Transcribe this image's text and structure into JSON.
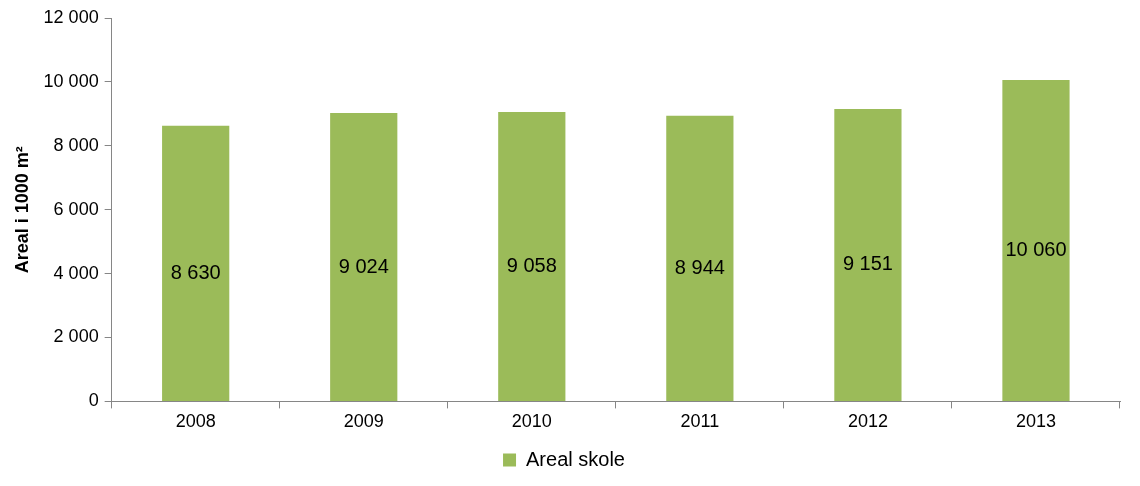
{
  "chart_data": {
    "type": "bar",
    "ylabel": "Areal i 1000 m²",
    "categories": [
      "2008",
      "2009",
      "2010",
      "2011",
      "2012",
      "2013"
    ],
    "series": [
      {
        "name": "Areal skole",
        "color": "#9bbb59",
        "values": [
          8630,
          9024,
          9058,
          8944,
          9151,
          10060
        ],
        "value_labels": [
          "8 630",
          "9 024",
          "9 058",
          "8 944",
          "9 151",
          "10 060"
        ]
      }
    ],
    "ylim": [
      0,
      12000
    ],
    "yticks": [
      {
        "value": 0,
        "label": "0"
      },
      {
        "value": 2000,
        "label": "2 000"
      },
      {
        "value": 4000,
        "label": "4 000"
      },
      {
        "value": 6000,
        "label": "6 000"
      },
      {
        "value": 8000,
        "label": "8 000"
      },
      {
        "value": 10000,
        "label": "10 000"
      },
      {
        "value": 12000,
        "label": "12 000"
      }
    ],
    "grid": false,
    "legend": "bottom"
  }
}
